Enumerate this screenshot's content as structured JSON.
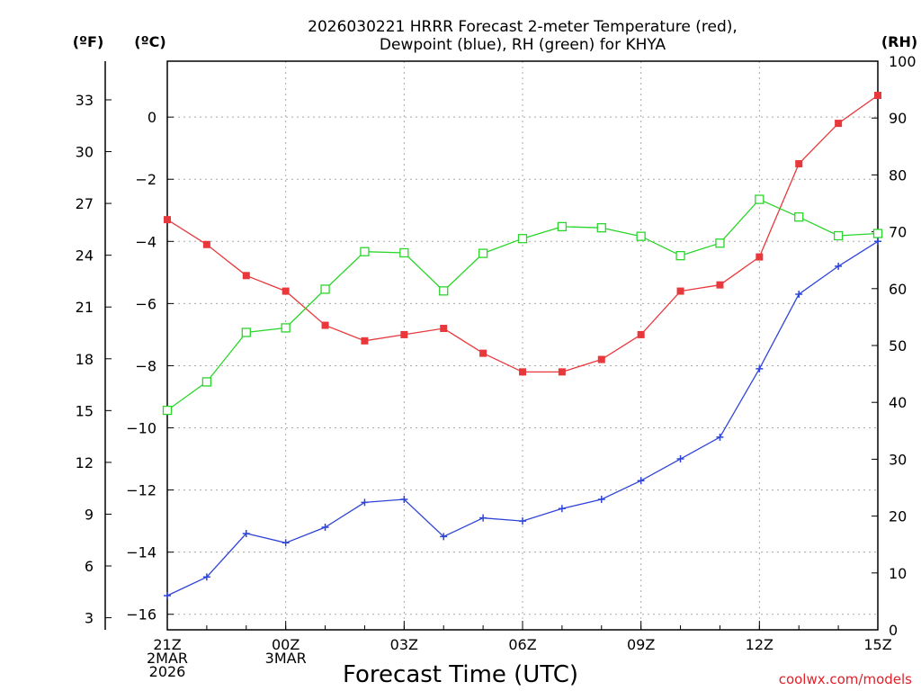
{
  "title_line1": "2026030221 HRRR Forecast 2-meter Temperature (red),",
  "title_line2": "Dewpoint (blue), RH (green) for KHYA",
  "units": {
    "f": "(ºF)",
    "c": "(ºC)",
    "rh": "(RH)"
  },
  "credit": "coolwx.com/models",
  "colors": {
    "temperature": "#e8383c",
    "dewpoint": "#2f45d8",
    "rh": "#2ad62a"
  },
  "chart_data": {
    "type": "line",
    "xlabel": "Forecast Time (UTC)",
    "x_hours": [
      21,
      22,
      23,
      24,
      25,
      26,
      27,
      28,
      29,
      30,
      31,
      32,
      33,
      34,
      35,
      36,
      37,
      38,
      39
    ],
    "x_ticks": [
      {
        "h": 21,
        "lines": [
          "21Z",
          "2MAR",
          "2026"
        ]
      },
      {
        "h": 24,
        "lines": [
          "00Z",
          "3MAR"
        ]
      },
      {
        "h": 27,
        "lines": [
          "03Z"
        ]
      },
      {
        "h": 30,
        "lines": [
          "06Z"
        ]
      },
      {
        "h": 33,
        "lines": [
          "09Z"
        ]
      },
      {
        "h": 36,
        "lines": [
          "12Z"
        ]
      },
      {
        "h": 39,
        "lines": [
          "15Z"
        ]
      }
    ],
    "xlim": [
      21,
      39
    ],
    "c_axis": {
      "ylim": [
        -16.5,
        1.8
      ],
      "ticks": [
        "0",
        "−2",
        "−4",
        "−6",
        "−8",
        "−10",
        "−12",
        "−14",
        "−16"
      ],
      "tick_values": [
        0,
        -2,
        -4,
        -6,
        -8,
        -10,
        -12,
        -14,
        -16
      ]
    },
    "f_axis": {
      "ticks": [
        "33",
        "30",
        "27",
        "24",
        "21",
        "18",
        "15",
        "12",
        "9",
        "6",
        "3"
      ],
      "tick_values": [
        33,
        30,
        27,
        24,
        21,
        18,
        15,
        12,
        9,
        6,
        3
      ]
    },
    "rh_axis": {
      "ylim": [
        0,
        100
      ],
      "ticks": [
        "100",
        "90",
        "80",
        "70",
        "60",
        "50",
        "40",
        "30",
        "20",
        "10",
        "0"
      ],
      "tick_values": [
        100,
        90,
        80,
        70,
        60,
        50,
        40,
        30,
        20,
        10,
        0
      ]
    },
    "series": [
      {
        "name": "Temperature",
        "axis": "c",
        "marker": "filled-square",
        "values": [
          -3.3,
          -4.1,
          -5.1,
          -5.6,
          -6.7,
          -7.2,
          -7.0,
          -6.8,
          -7.6,
          -8.2,
          -8.2,
          -7.8,
          -7.0,
          -5.6,
          -5.4,
          -4.5,
          -1.5,
          -0.2,
          0.7
        ]
      },
      {
        "name": "Dewpoint",
        "axis": "c",
        "marker": "plus",
        "values": [
          -15.4,
          -14.8,
          -13.4,
          -13.7,
          -13.2,
          -12.4,
          -12.3,
          -13.5,
          -12.9,
          -13.0,
          -12.6,
          -12.3,
          -11.7,
          -11.0,
          -10.3,
          -8.1,
          -5.7,
          -4.8,
          -4.0
        ]
      },
      {
        "name": "RH",
        "axis": "rh",
        "marker": "open-square",
        "values": [
          38.6,
          43.6,
          52.3,
          53.1,
          59.9,
          66.5,
          66.3,
          59.6,
          66.2,
          68.8,
          70.9,
          70.7,
          69.2,
          65.8,
          68.0,
          75.7,
          72.6,
          69.3,
          69.7
        ]
      }
    ]
  }
}
